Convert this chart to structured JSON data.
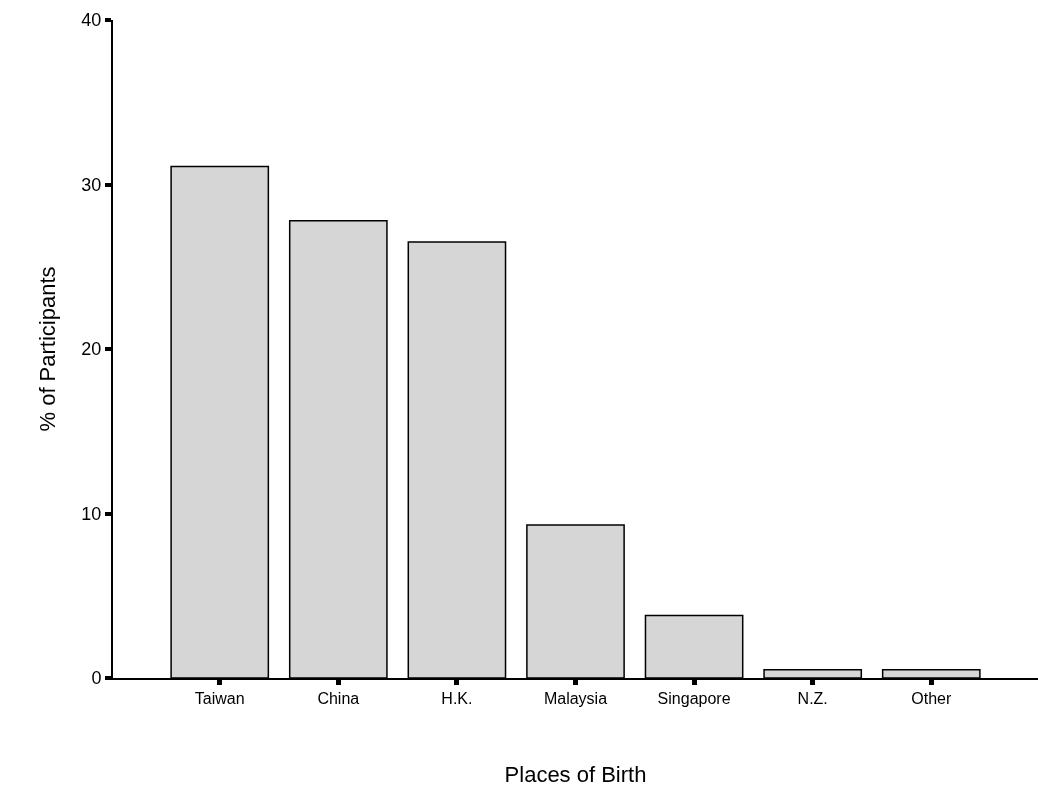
{
  "chart_data": {
    "type": "bar",
    "xlabel": "Places of Birth",
    "ylabel": "% of Participants",
    "categories": [
      "Taiwan",
      "China",
      "H.K.",
      "Malaysia",
      "Singapore",
      "N.Z.",
      "Other"
    ],
    "values": [
      31.1,
      27.8,
      26.5,
      9.3,
      3.8,
      0.5,
      0.5
    ],
    "color": "#d6d6d6",
    "ylim": [
      0,
      40
    ],
    "yticks": [
      0,
      10,
      20,
      30,
      40
    ]
  }
}
